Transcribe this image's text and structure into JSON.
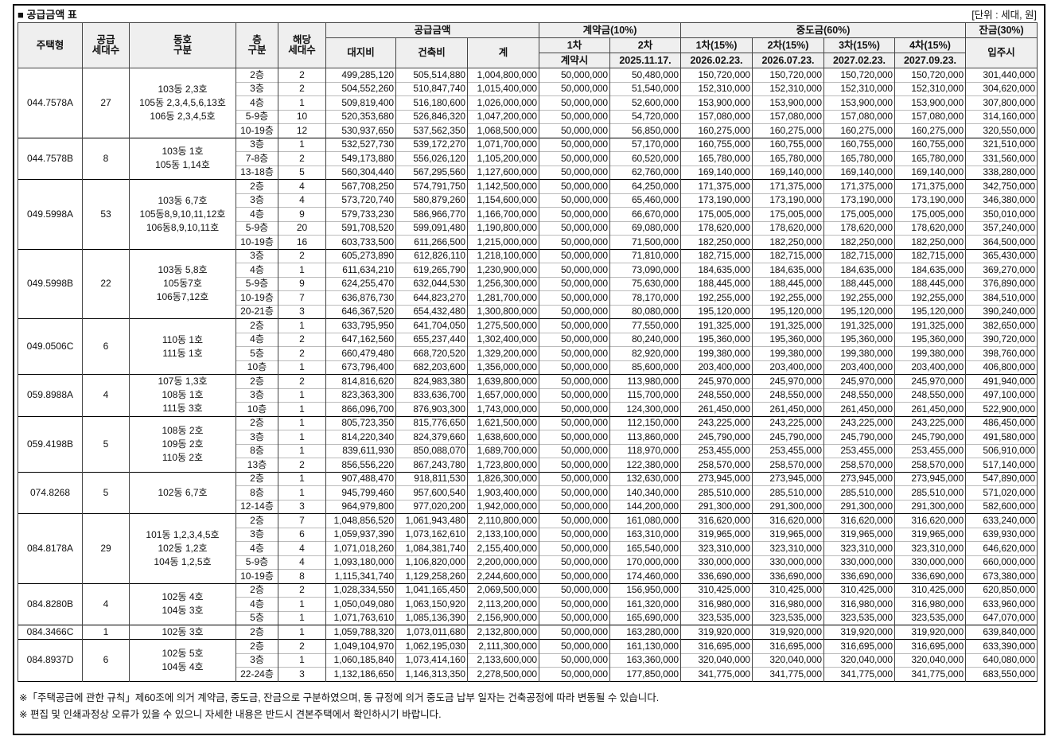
{
  "header": {
    "title": "■ 공급금액 표",
    "unit": "[단위 : 세대, 원]"
  },
  "table": {
    "head": {
      "type": "주택형",
      "households": "공급\n세대수",
      "dongho": "동호\n구분",
      "floor": "층\n구분",
      "units": "해당\n세대수",
      "supply": "공급금액",
      "land": "대지비",
      "building": "건축비",
      "total": "계",
      "deposit": "계약금(10%)",
      "d1": "1차",
      "d2": "2차",
      "d1when": "계약시",
      "d2when": "2025.11.17.",
      "middle": "중도금(60%)",
      "m1": "1차(15%)",
      "m2": "2차(15%)",
      "m3": "3차(15%)",
      "m4": "4차(15%)",
      "m1when": "2026.02.23.",
      "m2when": "2026.07.23.",
      "m3when": "2027.02.23.",
      "m4when": "2027.09.23.",
      "balance": "잔금(30%)",
      "balancewhen": "입주시"
    },
    "groups": [
      {
        "type": "044.7578A",
        "households": "27",
        "dongho": [
          "103동 2,3호",
          "105동 2,3,4,5,6,13호",
          "106동 2,3,4,5호"
        ],
        "rows": [
          [
            "2층",
            "2",
            "499,285,120",
            "505,514,880",
            "1,004,800,000",
            "50,000,000",
            "50,480,000",
            "150,720,000",
            "150,720,000",
            "150,720,000",
            "150,720,000",
            "301,440,000"
          ],
          [
            "3층",
            "2",
            "504,552,260",
            "510,847,740",
            "1,015,400,000",
            "50,000,000",
            "51,540,000",
            "152,310,000",
            "152,310,000",
            "152,310,000",
            "152,310,000",
            "304,620,000"
          ],
          [
            "4층",
            "1",
            "509,819,400",
            "516,180,600",
            "1,026,000,000",
            "50,000,000",
            "52,600,000",
            "153,900,000",
            "153,900,000",
            "153,900,000",
            "153,900,000",
            "307,800,000"
          ],
          [
            "5-9층",
            "10",
            "520,353,680",
            "526,846,320",
            "1,047,200,000",
            "50,000,000",
            "54,720,000",
            "157,080,000",
            "157,080,000",
            "157,080,000",
            "157,080,000",
            "314,160,000"
          ],
          [
            "10-19층",
            "12",
            "530,937,650",
            "537,562,350",
            "1,068,500,000",
            "50,000,000",
            "56,850,000",
            "160,275,000",
            "160,275,000",
            "160,275,000",
            "160,275,000",
            "320,550,000"
          ]
        ]
      },
      {
        "type": "044.7578B",
        "households": "8",
        "dongho": [
          "103동 1호",
          "105동 1,14호"
        ],
        "rows": [
          [
            "3층",
            "1",
            "532,527,730",
            "539,172,270",
            "1,071,700,000",
            "50,000,000",
            "57,170,000",
            "160,755,000",
            "160,755,000",
            "160,755,000",
            "160,755,000",
            "321,510,000"
          ],
          [
            "7-8층",
            "2",
            "549,173,880",
            "556,026,120",
            "1,105,200,000",
            "50,000,000",
            "60,520,000",
            "165,780,000",
            "165,780,000",
            "165,780,000",
            "165,780,000",
            "331,560,000"
          ],
          [
            "13-18층",
            "5",
            "560,304,440",
            "567,295,560",
            "1,127,600,000",
            "50,000,000",
            "62,760,000",
            "169,140,000",
            "169,140,000",
            "169,140,000",
            "169,140,000",
            "338,280,000"
          ]
        ]
      },
      {
        "type": "049.5998A",
        "households": "53",
        "dongho": [
          "103동 6,7호",
          "105동8,9,10,11,12호",
          "106동8,9,10,11호"
        ],
        "rows": [
          [
            "2층",
            "4",
            "567,708,250",
            "574,791,750",
            "1,142,500,000",
            "50,000,000",
            "64,250,000",
            "171,375,000",
            "171,375,000",
            "171,375,000",
            "171,375,000",
            "342,750,000"
          ],
          [
            "3층",
            "4",
            "573,720,740",
            "580,879,260",
            "1,154,600,000",
            "50,000,000",
            "65,460,000",
            "173,190,000",
            "173,190,000",
            "173,190,000",
            "173,190,000",
            "346,380,000"
          ],
          [
            "4층",
            "9",
            "579,733,230",
            "586,966,770",
            "1,166,700,000",
            "50,000,000",
            "66,670,000",
            "175,005,000",
            "175,005,000",
            "175,005,000",
            "175,005,000",
            "350,010,000"
          ],
          [
            "5-9층",
            "20",
            "591,708,520",
            "599,091,480",
            "1,190,800,000",
            "50,000,000",
            "69,080,000",
            "178,620,000",
            "178,620,000",
            "178,620,000",
            "178,620,000",
            "357,240,000"
          ],
          [
            "10-19층",
            "16",
            "603,733,500",
            "611,266,500",
            "1,215,000,000",
            "50,000,000",
            "71,500,000",
            "182,250,000",
            "182,250,000",
            "182,250,000",
            "182,250,000",
            "364,500,000"
          ]
        ]
      },
      {
        "type": "049.5998B",
        "households": "22",
        "dongho": [
          "103동 5,8호",
          "105동7호",
          "106동7,12호"
        ],
        "rows": [
          [
            "3층",
            "2",
            "605,273,890",
            "612,826,110",
            "1,218,100,000",
            "50,000,000",
            "71,810,000",
            "182,715,000",
            "182,715,000",
            "182,715,000",
            "182,715,000",
            "365,430,000"
          ],
          [
            "4층",
            "1",
            "611,634,210",
            "619,265,790",
            "1,230,900,000",
            "50,000,000",
            "73,090,000",
            "184,635,000",
            "184,635,000",
            "184,635,000",
            "184,635,000",
            "369,270,000"
          ],
          [
            "5-9층",
            "9",
            "624,255,470",
            "632,044,530",
            "1,256,300,000",
            "50,000,000",
            "75,630,000",
            "188,445,000",
            "188,445,000",
            "188,445,000",
            "188,445,000",
            "376,890,000"
          ],
          [
            "10-19층",
            "7",
            "636,876,730",
            "644,823,270",
            "1,281,700,000",
            "50,000,000",
            "78,170,000",
            "192,255,000",
            "192,255,000",
            "192,255,000",
            "192,255,000",
            "384,510,000"
          ],
          [
            "20-21층",
            "3",
            "646,367,520",
            "654,432,480",
            "1,300,800,000",
            "50,000,000",
            "80,080,000",
            "195,120,000",
            "195,120,000",
            "195,120,000",
            "195,120,000",
            "390,240,000"
          ]
        ]
      },
      {
        "type": "049.0506C",
        "households": "6",
        "dongho": [
          "110동 1호",
          "111동 1호"
        ],
        "rows": [
          [
            "2층",
            "1",
            "633,795,950",
            "641,704,050",
            "1,275,500,000",
            "50,000,000",
            "77,550,000",
            "191,325,000",
            "191,325,000",
            "191,325,000",
            "191,325,000",
            "382,650,000"
          ],
          [
            "4층",
            "2",
            "647,162,560",
            "655,237,440",
            "1,302,400,000",
            "50,000,000",
            "80,240,000",
            "195,360,000",
            "195,360,000",
            "195,360,000",
            "195,360,000",
            "390,720,000"
          ],
          [
            "5층",
            "2",
            "660,479,480",
            "668,720,520",
            "1,329,200,000",
            "50,000,000",
            "82,920,000",
            "199,380,000",
            "199,380,000",
            "199,380,000",
            "199,380,000",
            "398,760,000"
          ],
          [
            "10층",
            "1",
            "673,796,400",
            "682,203,600",
            "1,356,000,000",
            "50,000,000",
            "85,600,000",
            "203,400,000",
            "203,400,000",
            "203,400,000",
            "203,400,000",
            "406,800,000"
          ]
        ]
      },
      {
        "type": "059.8988A",
        "households": "4",
        "dongho": [
          "107동 1,3호",
          "108동 1호",
          "111동 3호"
        ],
        "rows": [
          [
            "2층",
            "2",
            "814,816,620",
            "824,983,380",
            "1,639,800,000",
            "50,000,000",
            "113,980,000",
            "245,970,000",
            "245,970,000",
            "245,970,000",
            "245,970,000",
            "491,940,000"
          ],
          [
            "3층",
            "1",
            "823,363,300",
            "833,636,700",
            "1,657,000,000",
            "50,000,000",
            "115,700,000",
            "248,550,000",
            "248,550,000",
            "248,550,000",
            "248,550,000",
            "497,100,000"
          ],
          [
            "10층",
            "1",
            "866,096,700",
            "876,903,300",
            "1,743,000,000",
            "50,000,000",
            "124,300,000",
            "261,450,000",
            "261,450,000",
            "261,450,000",
            "261,450,000",
            "522,900,000"
          ]
        ]
      },
      {
        "type": "059.4198B",
        "households": "5",
        "dongho": [
          "108동 2호",
          "109동 2호",
          "110동 2호"
        ],
        "rows": [
          [
            "2층",
            "1",
            "805,723,350",
            "815,776,650",
            "1,621,500,000",
            "50,000,000",
            "112,150,000",
            "243,225,000",
            "243,225,000",
            "243,225,000",
            "243,225,000",
            "486,450,000"
          ],
          [
            "3층",
            "1",
            "814,220,340",
            "824,379,660",
            "1,638,600,000",
            "50,000,000",
            "113,860,000",
            "245,790,000",
            "245,790,000",
            "245,790,000",
            "245,790,000",
            "491,580,000"
          ],
          [
            "8층",
            "1",
            "839,611,930",
            "850,088,070",
            "1,689,700,000",
            "50,000,000",
            "118,970,000",
            "253,455,000",
            "253,455,000",
            "253,455,000",
            "253,455,000",
            "506,910,000"
          ],
          [
            "13층",
            "2",
            "856,556,220",
            "867,243,780",
            "1,723,800,000",
            "50,000,000",
            "122,380,000",
            "258,570,000",
            "258,570,000",
            "258,570,000",
            "258,570,000",
            "517,140,000"
          ]
        ]
      },
      {
        "type": "074.8268",
        "households": "5",
        "dongho": [
          "102동 6,7호"
        ],
        "rows": [
          [
            "2층",
            "1",
            "907,488,470",
            "918,811,530",
            "1,826,300,000",
            "50,000,000",
            "132,630,000",
            "273,945,000",
            "273,945,000",
            "273,945,000",
            "273,945,000",
            "547,890,000"
          ],
          [
            "8층",
            "1",
            "945,799,460",
            "957,600,540",
            "1,903,400,000",
            "50,000,000",
            "140,340,000",
            "285,510,000",
            "285,510,000",
            "285,510,000",
            "285,510,000",
            "571,020,000"
          ],
          [
            "12-14층",
            "3",
            "964,979,800",
            "977,020,200",
            "1,942,000,000",
            "50,000,000",
            "144,200,000",
            "291,300,000",
            "291,300,000",
            "291,300,000",
            "291,300,000",
            "582,600,000"
          ]
        ]
      },
      {
        "type": "084.8178A",
        "households": "29",
        "dongho": [
          "101동 1,2,3,4,5호",
          "102동 1,2호",
          "104동 1,2,5호"
        ],
        "rows": [
          [
            "2층",
            "7",
            "1,048,856,520",
            "1,061,943,480",
            "2,110,800,000",
            "50,000,000",
            "161,080,000",
            "316,620,000",
            "316,620,000",
            "316,620,000",
            "316,620,000",
            "633,240,000"
          ],
          [
            "3층",
            "6",
            "1,059,937,390",
            "1,073,162,610",
            "2,133,100,000",
            "50,000,000",
            "163,310,000",
            "319,965,000",
            "319,965,000",
            "319,965,000",
            "319,965,000",
            "639,930,000"
          ],
          [
            "4층",
            "4",
            "1,071,018,260",
            "1,084,381,740",
            "2,155,400,000",
            "50,000,000",
            "165,540,000",
            "323,310,000",
            "323,310,000",
            "323,310,000",
            "323,310,000",
            "646,620,000"
          ],
          [
            "5-9층",
            "4",
            "1,093,180,000",
            "1,106,820,000",
            "2,200,000,000",
            "50,000,000",
            "170,000,000",
            "330,000,000",
            "330,000,000",
            "330,000,000",
            "330,000,000",
            "660,000,000"
          ],
          [
            "10-19층",
            "8",
            "1,115,341,740",
            "1,129,258,260",
            "2,244,600,000",
            "50,000,000",
            "174,460,000",
            "336,690,000",
            "336,690,000",
            "336,690,000",
            "336,690,000",
            "673,380,000"
          ]
        ]
      },
      {
        "type": "084.8280B",
        "households": "4",
        "dongho": [
          "102동 4호",
          "104동 3호"
        ],
        "rows": [
          [
            "2층",
            "2",
            "1,028,334,550",
            "1,041,165,450",
            "2,069,500,000",
            "50,000,000",
            "156,950,000",
            "310,425,000",
            "310,425,000",
            "310,425,000",
            "310,425,000",
            "620,850,000"
          ],
          [
            "4층",
            "1",
            "1,050,049,080",
            "1,063,150,920",
            "2,113,200,000",
            "50,000,000",
            "161,320,000",
            "316,980,000",
            "316,980,000",
            "316,980,000",
            "316,980,000",
            "633,960,000"
          ],
          [
            "5층",
            "1",
            "1,071,763,610",
            "1,085,136,390",
            "2,156,900,000",
            "50,000,000",
            "165,690,000",
            "323,535,000",
            "323,535,000",
            "323,535,000",
            "323,535,000",
            "647,070,000"
          ]
        ]
      },
      {
        "type": "084.3466C",
        "households": "1",
        "dongho": [
          "102동 3호"
        ],
        "rows": [
          [
            "2층",
            "1",
            "1,059,788,320",
            "1,073,011,680",
            "2,132,800,000",
            "50,000,000",
            "163,280,000",
            "319,920,000",
            "319,920,000",
            "319,920,000",
            "319,920,000",
            "639,840,000"
          ]
        ]
      },
      {
        "type": "084.8937D",
        "households": "6",
        "dongho": [
          "102동 5호",
          "104동 4호"
        ],
        "rows": [
          [
            "2층",
            "2",
            "1,049,104,970",
            "1,062,195,030",
            "2,111,300,000",
            "50,000,000",
            "161,130,000",
            "316,695,000",
            "316,695,000",
            "316,695,000",
            "316,695,000",
            "633,390,000"
          ],
          [
            "3층",
            "1",
            "1,060,185,840",
            "1,073,414,160",
            "2,133,600,000",
            "50,000,000",
            "163,360,000",
            "320,040,000",
            "320,040,000",
            "320,040,000",
            "320,040,000",
            "640,080,000"
          ],
          [
            "22-24층",
            "3",
            "1,132,186,650",
            "1,146,313,350",
            "2,278,500,000",
            "50,000,000",
            "177,850,000",
            "341,775,000",
            "341,775,000",
            "341,775,000",
            "341,775,000",
            "683,550,000"
          ]
        ]
      }
    ]
  },
  "notes": [
    "※「주택공급에 관한 규칙」제60조에 의거 계약금, 중도금, 잔금으로 구분하였으며, 동 규정에 의거 중도금 납부 일자는 건축공정에 따라 변동될 수 있습니다.",
    "※ 편집 및 인쇄과정상 오류가 있을 수 있으니 자세한 내용은 반드시 견본주택에서 확인하시기 바랍니다."
  ]
}
